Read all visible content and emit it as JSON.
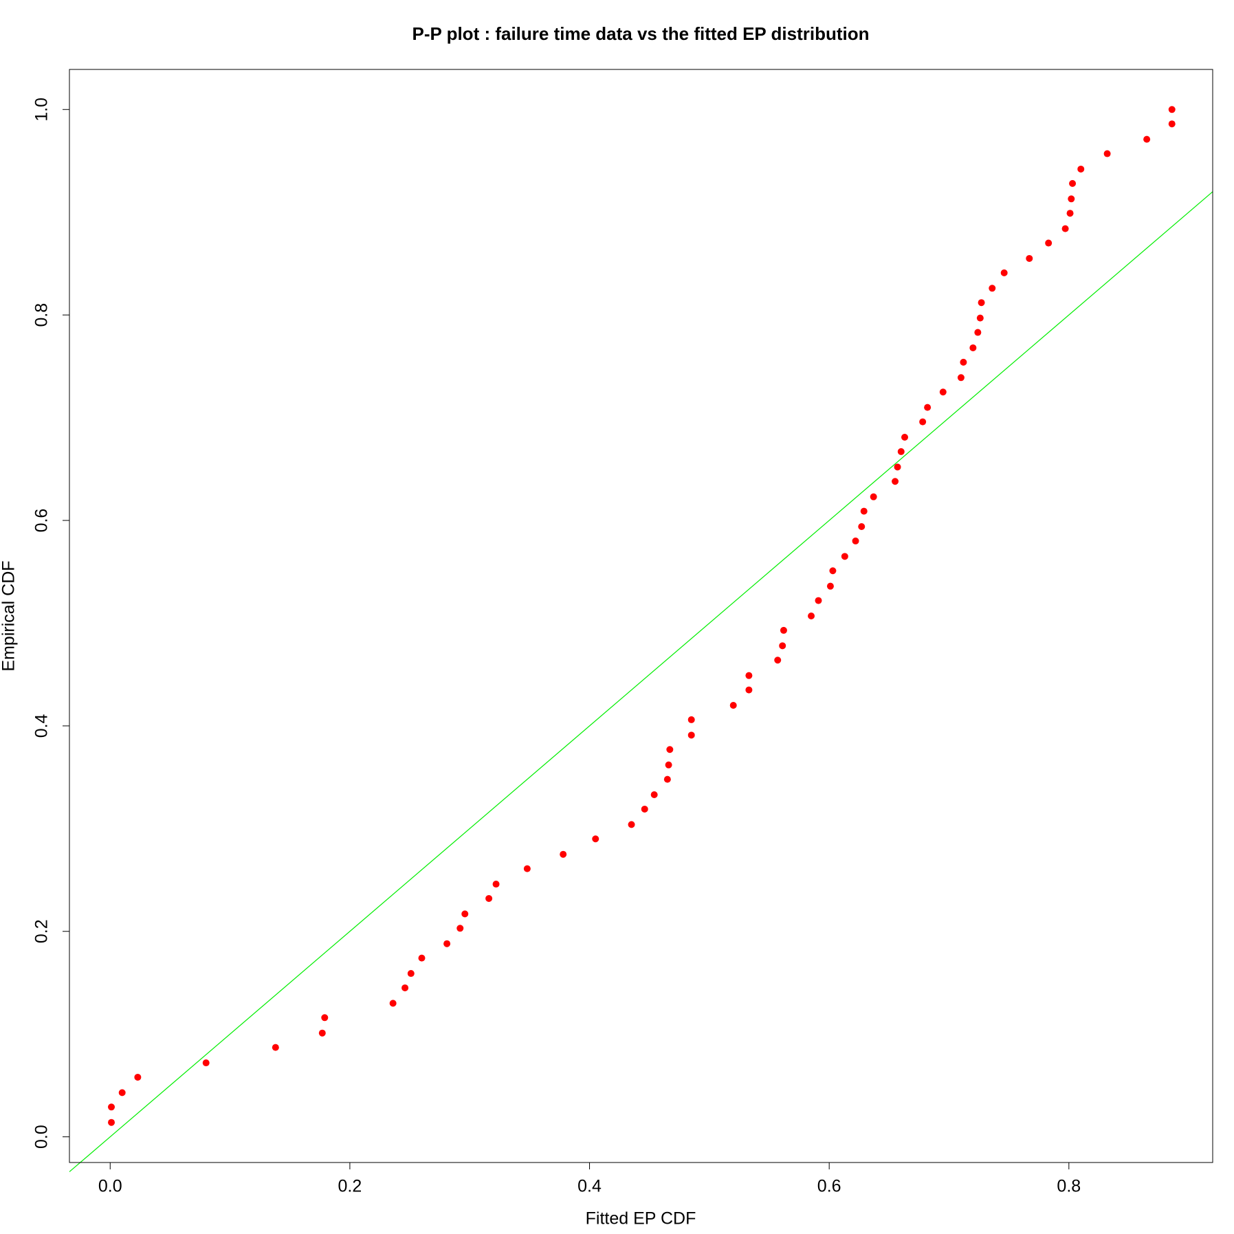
{
  "chart_data": {
    "type": "scatter",
    "title": "P-P plot : failure time data vs the fitted EP distribution",
    "x_label": "Fitted EP CDF",
    "y_label": "Empirical CDF",
    "color": "#ff0000",
    "reference_line": {
      "intercept": 0,
      "slope": 1,
      "color": "#00ee00"
    },
    "xlim": [
      -0.034,
      0.92
    ],
    "ylim": [
      -0.025,
      1.039
    ],
    "xticks": [
      {
        "value": 0,
        "label": "0.0"
      },
      0.2,
      0.4,
      0.6,
      0.8
    ],
    "yticks": [
      {
        "value": 0,
        "label": "0.0"
      },
      0.2,
      0.4,
      0.6,
      0.8,
      {
        "value": 1,
        "label": "1.0"
      }
    ],
    "x": [
      0.001,
      0.001,
      0.01,
      0.023,
      0.08,
      0.138,
      0.177,
      0.179,
      0.236,
      0.246,
      0.251,
      0.26,
      0.281,
      0.292,
      0.296,
      0.316,
      0.322,
      0.348,
      0.378,
      0.405,
      0.435,
      0.446,
      0.454,
      0.465,
      0.466,
      0.467,
      0.485,
      0.485,
      0.52,
      0.533,
      0.533,
      0.557,
      0.561,
      0.562,
      0.585,
      0.591,
      0.601,
      0.603,
      0.613,
      0.622,
      0.627,
      0.629,
      0.637,
      0.655,
      0.657,
      0.66,
      0.663,
      0.678,
      0.682,
      0.695,
      0.71,
      0.712,
      0.72,
      0.724,
      0.726,
      0.727,
      0.736,
      0.746,
      0.767,
      0.783,
      0.797,
      0.801,
      0.802,
      0.803,
      0.81,
      0.832,
      0.865,
      0.886,
      0.886
    ],
    "y": [
      0.014,
      0.029,
      0.043,
      0.058,
      0.072,
      0.087,
      0.101,
      0.116,
      0.13,
      0.145,
      0.159,
      0.174,
      0.188,
      0.203,
      0.217,
      0.232,
      0.246,
      0.261,
      0.275,
      0.29,
      0.304,
      0.319,
      0.333,
      0.348,
      0.362,
      0.377,
      0.391,
      0.406,
      0.42,
      0.435,
      0.449,
      0.464,
      0.478,
      0.493,
      0.507,
      0.522,
      0.536,
      0.551,
      0.565,
      0.58,
      0.594,
      0.609,
      0.623,
      0.638,
      0.652,
      0.667,
      0.681,
      0.696,
      0.71,
      0.725,
      0.739,
      0.754,
      0.768,
      0.783,
      0.797,
      0.812,
      0.826,
      0.841,
      0.855,
      0.87,
      0.884,
      0.899,
      0.913,
      0.928,
      0.942,
      0.957,
      0.971,
      0.986,
      1.0
    ]
  }
}
